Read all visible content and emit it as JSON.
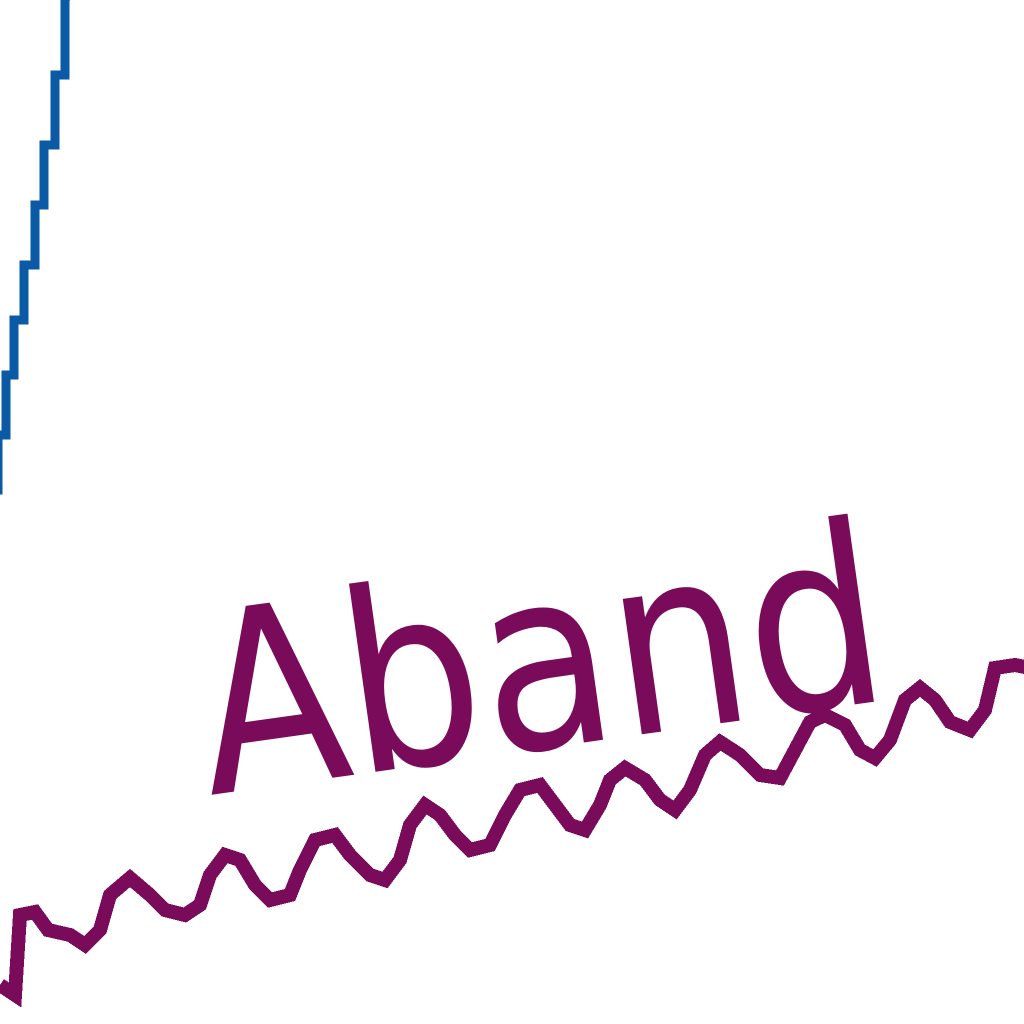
{
  "annotation": {
    "word": "Aband",
    "color": "#7a0a5a"
  },
  "line": {
    "color": "#0a5aa5"
  },
  "underline": {
    "color": "#7a0a5a"
  }
}
